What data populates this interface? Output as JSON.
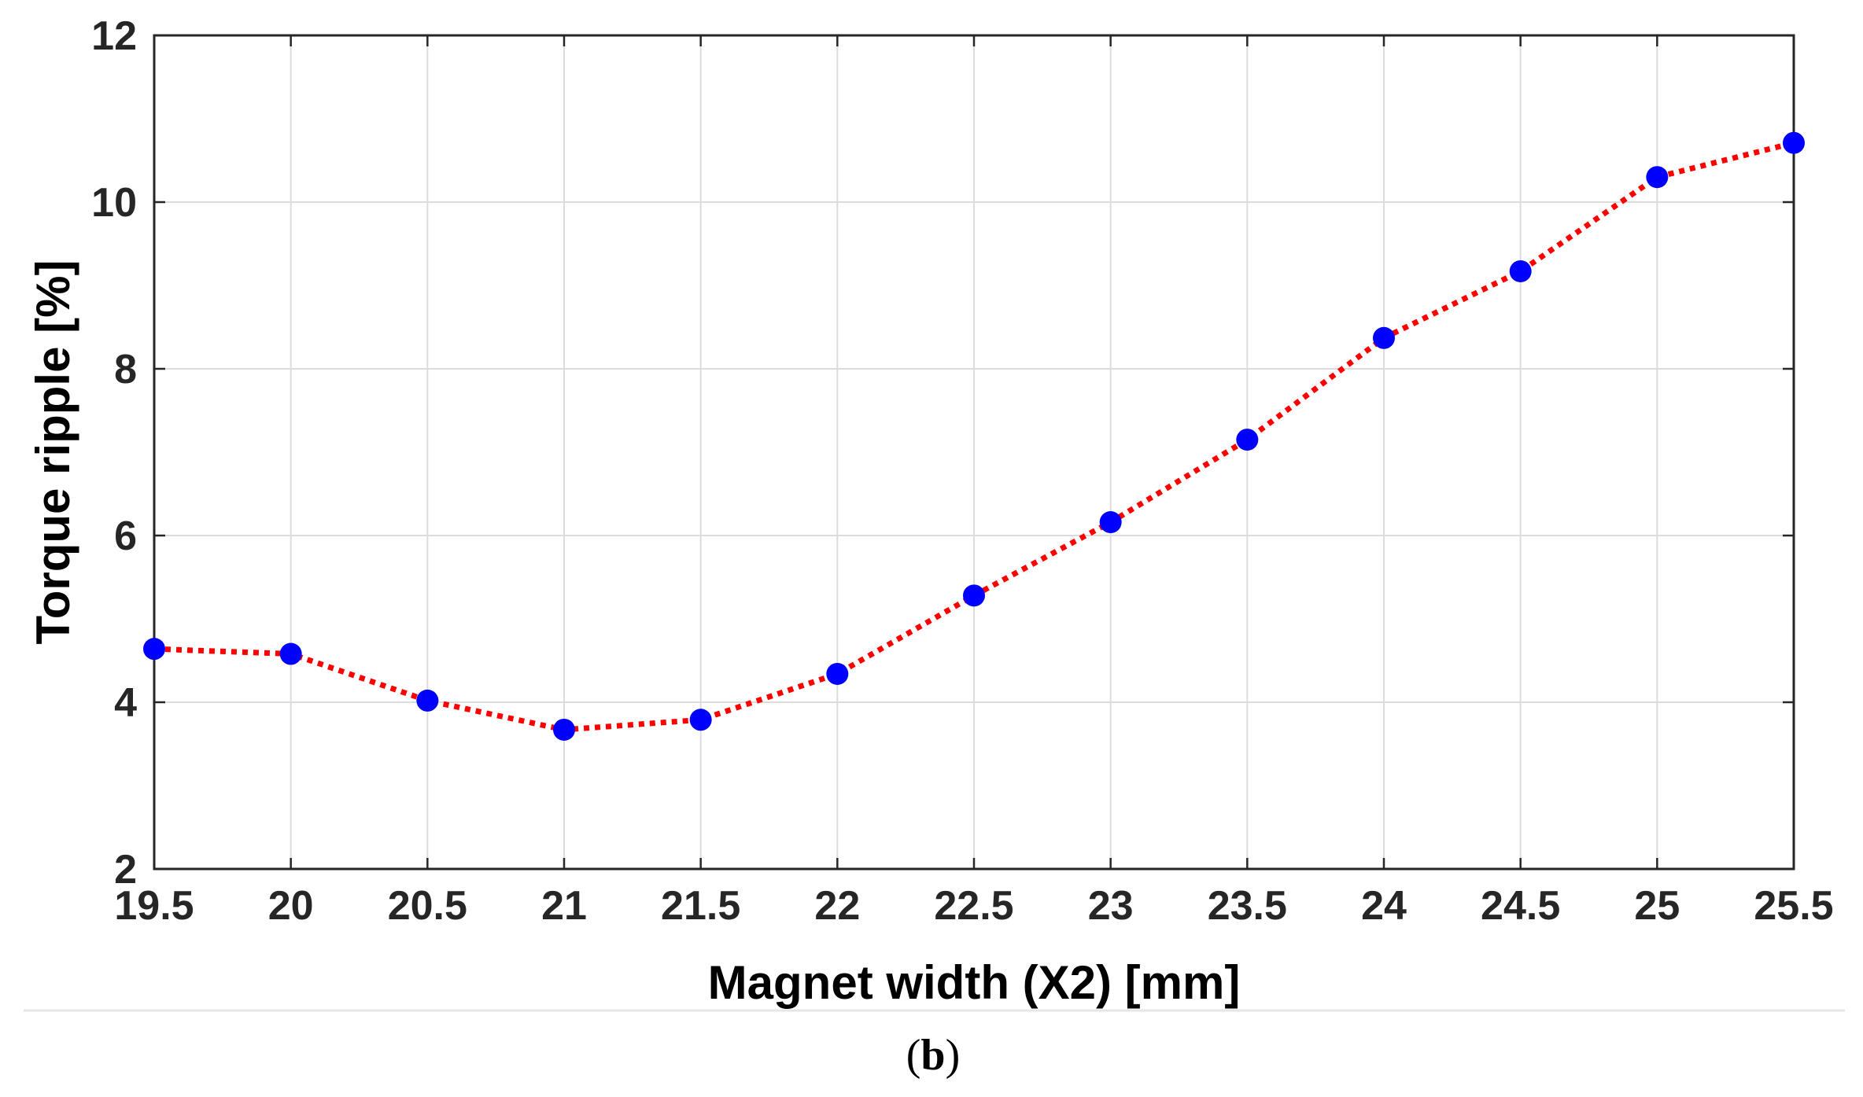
{
  "chart_data": {
    "type": "line",
    "xlabel": "Magnet width (X2) [mm]",
    "ylabel": "Torque ripple [%]",
    "xlim": [
      19.5,
      25.5
    ],
    "ylim": [
      2,
      12
    ],
    "xticks": [
      "19.5",
      "20",
      "20.5",
      "21",
      "21.5",
      "22",
      "22.5",
      "23",
      "23.5",
      "24",
      "24.5",
      "25",
      "25.5"
    ],
    "yticks": [
      "2",
      "4",
      "6",
      "8",
      "10",
      "12"
    ],
    "grid": true,
    "legend": "none",
    "series": [
      {
        "line_color": "#ff0000",
        "marker_color": "#0000ff",
        "line_style": "dotted",
        "x": [
          19.5,
          20,
          20.5,
          21,
          21.5,
          22,
          22.5,
          23,
          23.5,
          24,
          24.5,
          25,
          25.5
        ],
        "y": [
          4.64,
          4.58,
          4.02,
          3.67,
          3.79,
          4.34,
          5.28,
          6.16,
          7.15,
          8.37,
          9.17,
          10.3,
          10.71
        ]
      }
    ]
  },
  "caption": {
    "open": "(",
    "letter": "b",
    "close": ")"
  },
  "colors": {
    "axis": "#262626",
    "grid": "#dcdcdc"
  }
}
